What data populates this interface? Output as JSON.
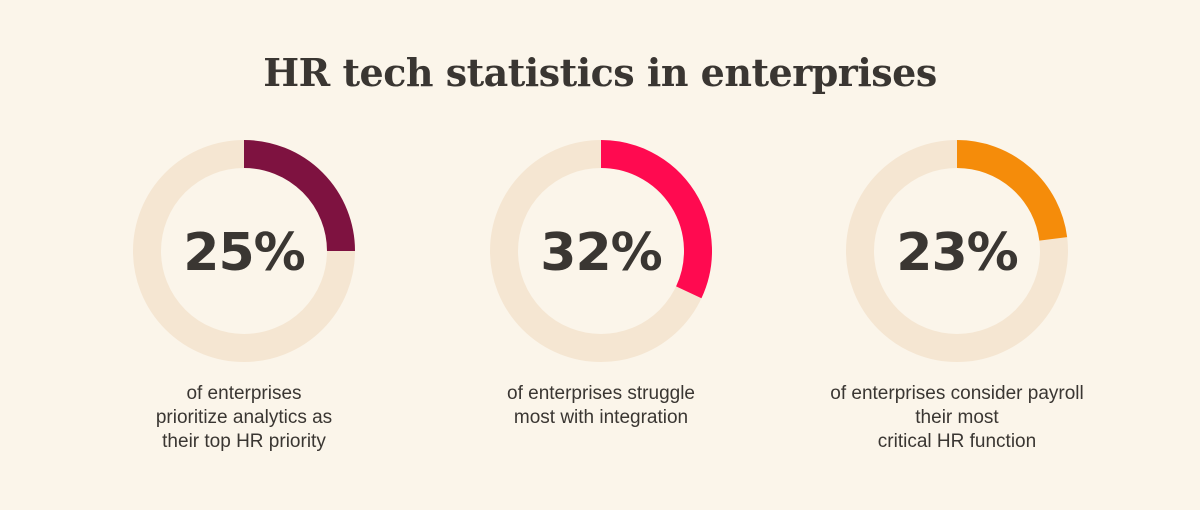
{
  "title": "HR tech statistics in enterprises",
  "track_color": "#f5e6d2",
  "chart_data": [
    {
      "type": "pie",
      "value": 25,
      "label": "25%",
      "color": "#7e1240",
      "caption_lines": [
        "of enterprises",
        "prioritize analytics as",
        "their top HR priority"
      ]
    },
    {
      "type": "pie",
      "value": 32,
      "label": "32%",
      "color": "#ff0a50",
      "caption_lines": [
        "of enterprises struggle",
        "most with integration"
      ]
    },
    {
      "type": "pie",
      "value": 23,
      "label": "23%",
      "color": "#f58c0a",
      "caption_lines": [
        "of enterprises consider payroll",
        "their most",
        "critical HR function"
      ]
    }
  ]
}
